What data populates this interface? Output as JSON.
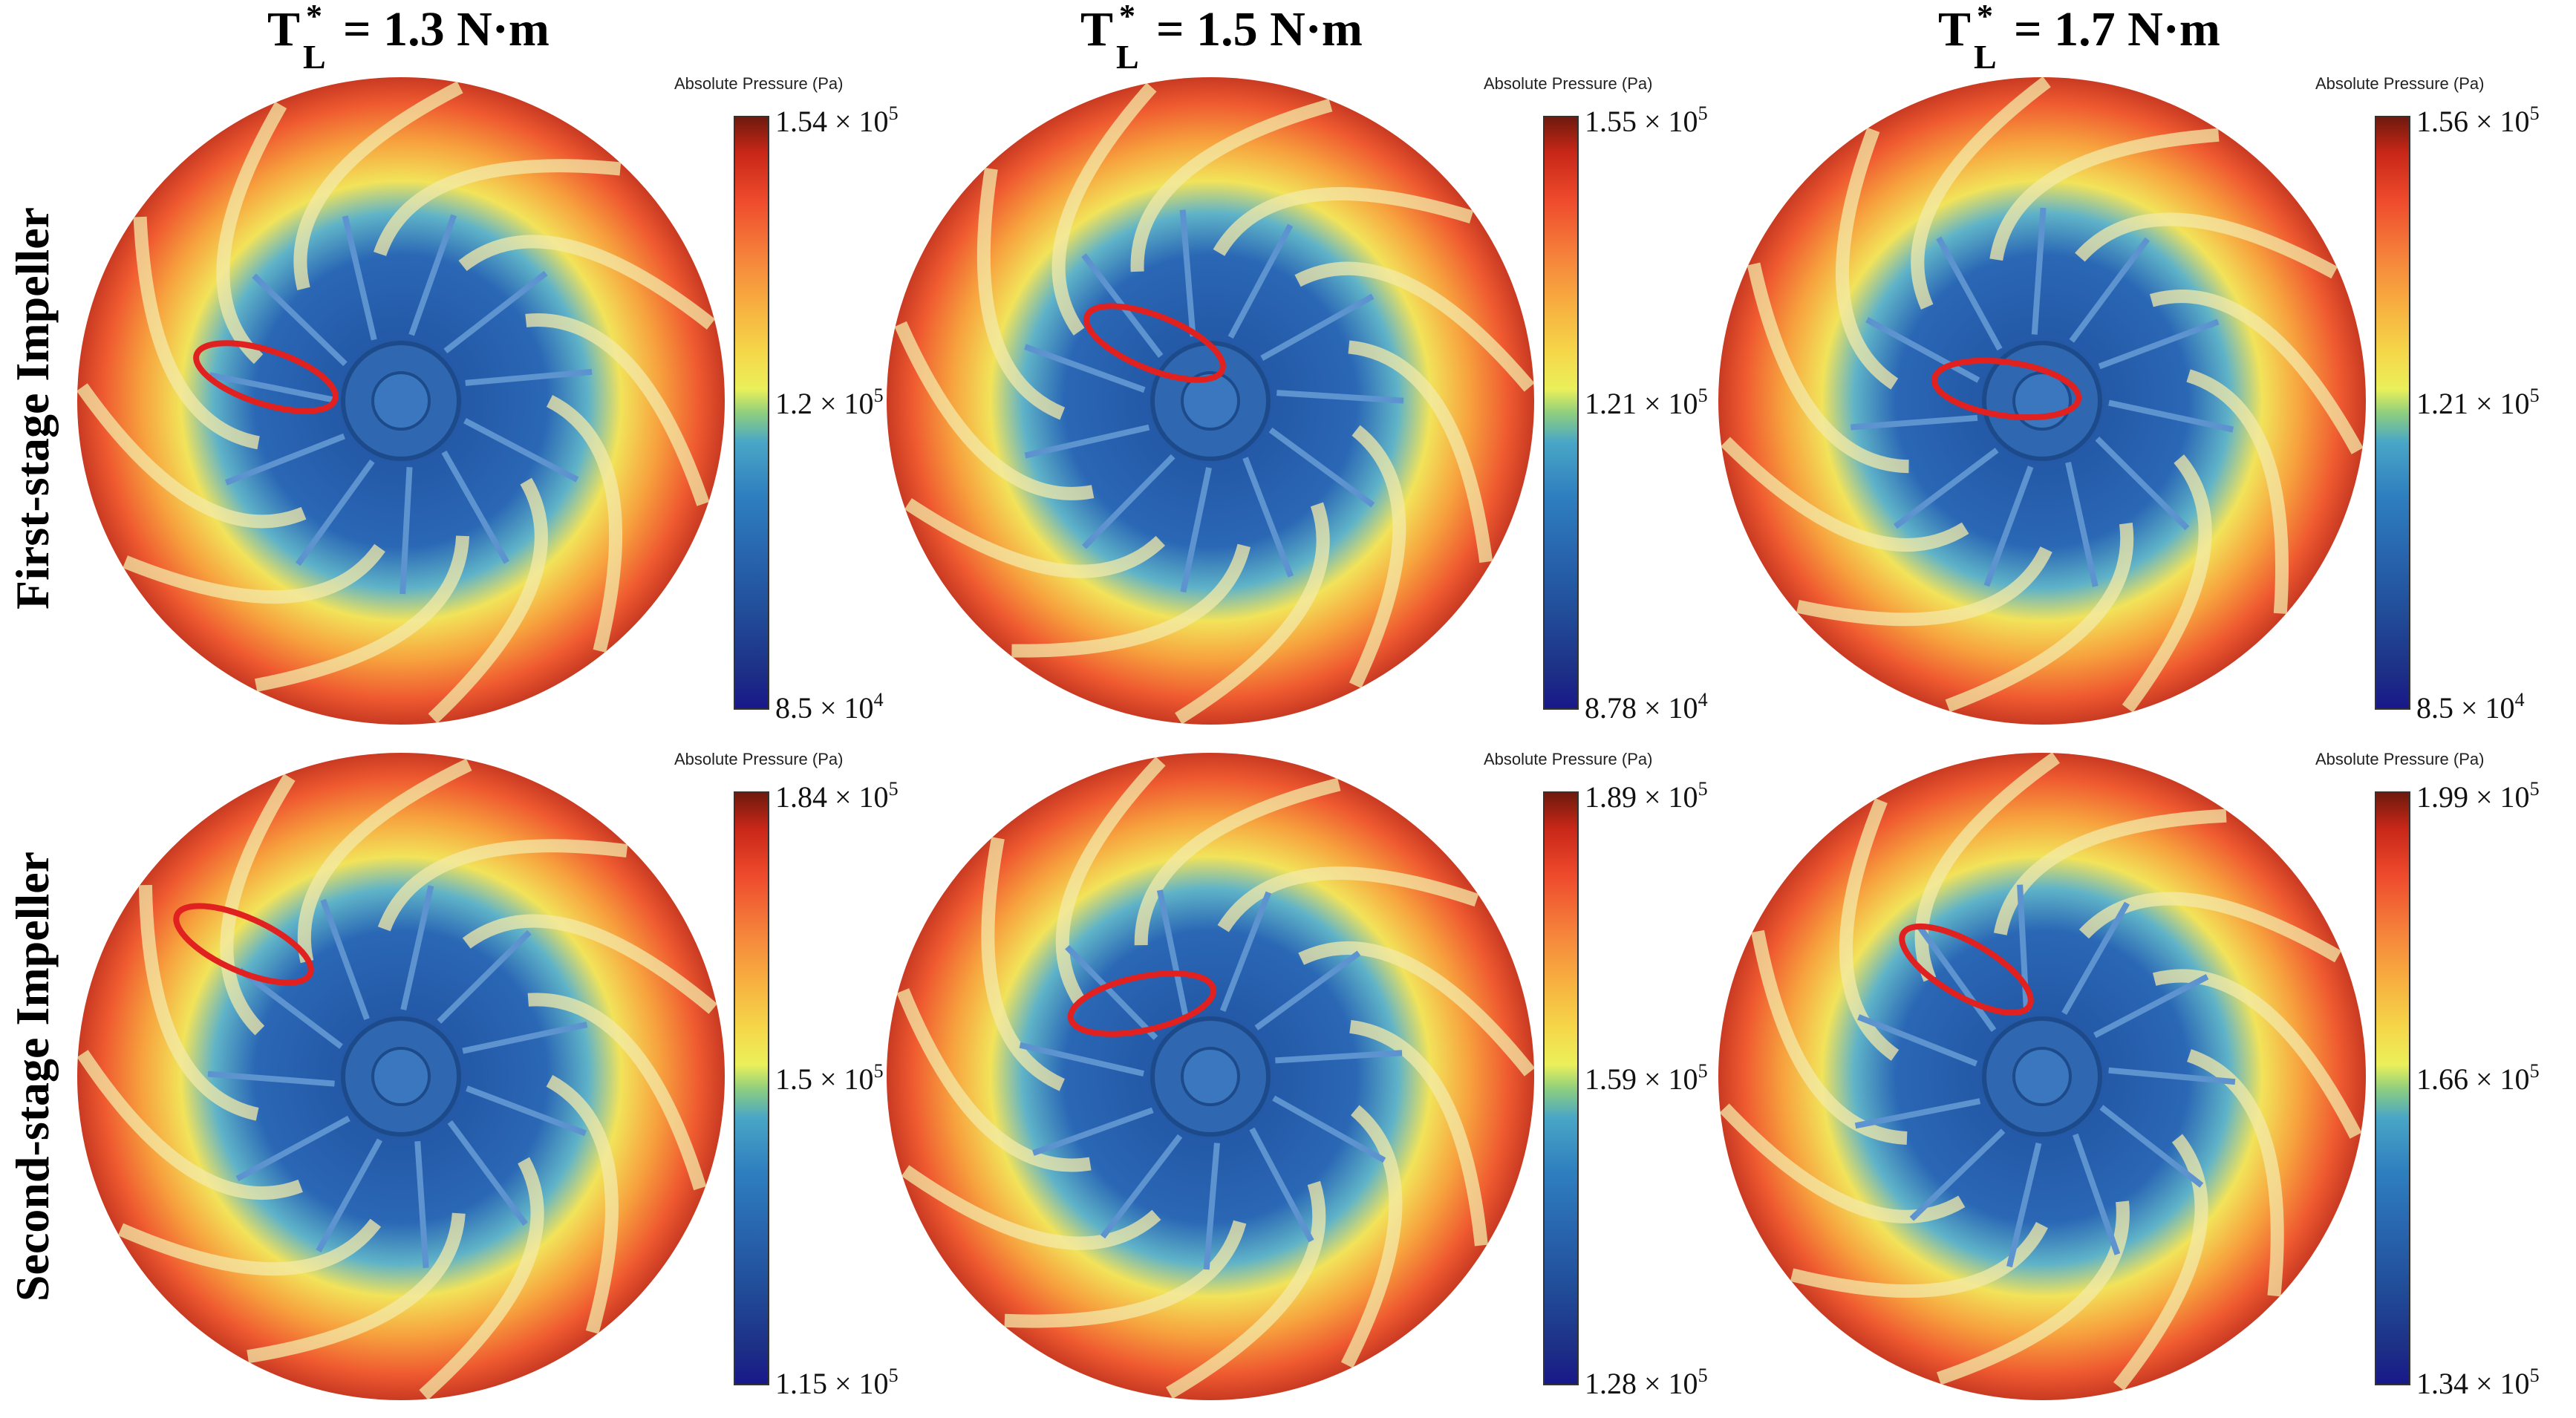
{
  "columns": [
    {
      "t": "T",
      "star": "*",
      "sub": "L",
      "value": "= 1.3 N·m"
    },
    {
      "t": "T",
      "star": "*",
      "sub": "L",
      "value": "= 1.5 N·m"
    },
    {
      "t": "T",
      "star": "*",
      "sub": "L",
      "value": "= 1.7 N·m"
    }
  ],
  "rows": [
    {
      "label": "First-stage Impeller"
    },
    {
      "label": "Second-stage Impeller"
    }
  ],
  "colorbar_title": "Absolute Pressure (Pa)",
  "panels": [
    {
      "max": "1.54 × 10",
      "max_exp": "5",
      "mid": "1.2 × 10",
      "mid_exp": "5",
      "min": "8.5 × 10",
      "min_exp": "4"
    },
    {
      "max": "1.55 × 10",
      "max_exp": "5",
      "mid": "1.21 × 10",
      "mid_exp": "5",
      "min": "8.78 × 10",
      "min_exp": "4"
    },
    {
      "max": "1.56 × 10",
      "max_exp": "5",
      "mid": "1.21 × 10",
      "mid_exp": "5",
      "min": "8.5 × 10",
      "min_exp": "4"
    },
    {
      "max": "1.84 × 10",
      "max_exp": "5",
      "mid": "1.5 × 10",
      "mid_exp": "5",
      "min": "1.15 × 10",
      "min_exp": "5"
    },
    {
      "max": "1.89 × 10",
      "max_exp": "5",
      "mid": "1.59 × 10",
      "mid_exp": "5",
      "min": "1.28 × 10",
      "min_exp": "5"
    },
    {
      "max": "1.99 × 10",
      "max_exp": "5",
      "mid": "1.66 × 10",
      "mid_exp": "5",
      "min": "1.34 × 10",
      "min_exp": "5"
    }
  ],
  "colors": {
    "highlight": "#e0211f",
    "low": "#1f4f9c",
    "high": "#ee4a2c"
  }
}
